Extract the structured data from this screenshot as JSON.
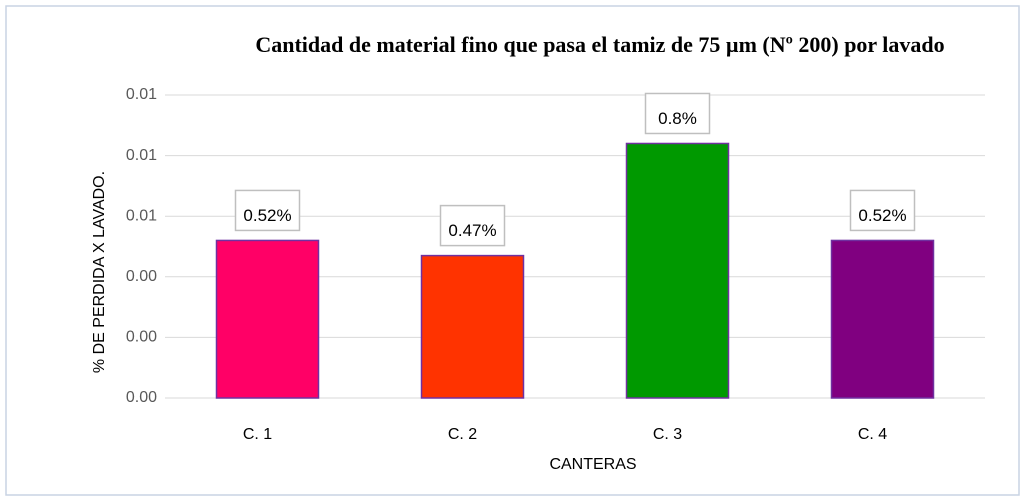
{
  "chart_data": {
    "type": "bar",
    "title": "Cantidad de material fino que pasa el tamiz de 75 µm (Nº 200) por lavado",
    "xlabel": "CANTERAS",
    "ylabel": "% DE PERDIDA X LAVADO.",
    "categories": [
      "C. 1",
      "C. 2",
      "C. 3",
      "C. 4"
    ],
    "values": [
      0.0052,
      0.0047,
      0.0084,
      0.0052
    ],
    "value_labels": [
      "0.52%",
      "0.47%",
      "0.8%",
      "0.52%"
    ],
    "colors": [
      "#ff0066",
      "#ff3300",
      "#009900",
      "#800080"
    ],
    "ylim": [
      0,
      0.01
    ],
    "yticks": [
      {
        "value": 0,
        "label": "0.00"
      },
      {
        "value": 0.002,
        "label": "0.00"
      },
      {
        "value": 0.004,
        "label": "0.00"
      },
      {
        "value": 0.006,
        "label": "0.01"
      },
      {
        "value": 0.008,
        "label": "0.01"
      },
      {
        "value": 0.01,
        "label": "0.01"
      }
    ],
    "grid": true
  }
}
